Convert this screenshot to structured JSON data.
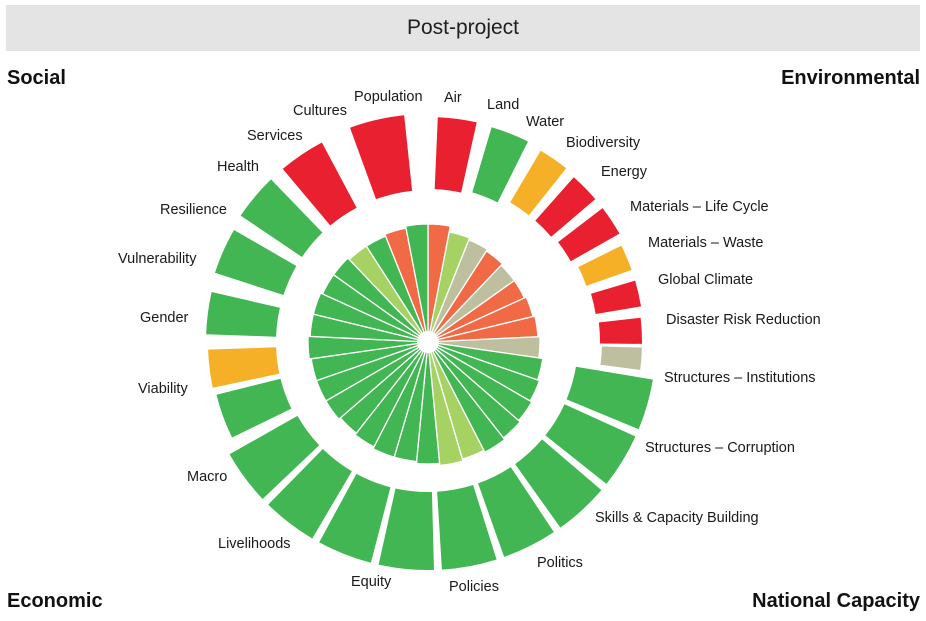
{
  "header": {
    "title": "Post-project"
  },
  "corners": {
    "top_left": "Social",
    "top_right": "Environmental",
    "bottom_left": "Economic",
    "bottom_right": "National Capacity"
  },
  "colors": {
    "green": "#41b653",
    "light_green": "#a6d264",
    "red": "#e8202f",
    "orange": "#f5b027",
    "salmon": "#ef6a45",
    "grey": "#bdbf9f"
  },
  "outer_ring": [
    {
      "label": "Air",
      "status": "red"
    },
    {
      "label": "Land",
      "status": "green"
    },
    {
      "label": "Water",
      "status": "orange"
    },
    {
      "label": "Biodiversity",
      "status": "red"
    },
    {
      "label": "Energy",
      "status": "red"
    },
    {
      "label": "Materials – Life Cycle",
      "status": "orange"
    },
    {
      "label": "Materials – Waste",
      "status": "red"
    },
    {
      "label": "Global Climate",
      "status": "red"
    },
    {
      "label": "Disaster Risk Reduction",
      "status": "grey"
    },
    {
      "label": "Structures – Institutions",
      "status": "green"
    },
    {
      "label": "Structures – Corruption",
      "status": "green"
    },
    {
      "label": "Skills & Capacity Building",
      "status": "green"
    },
    {
      "label": "Politics",
      "status": "green"
    },
    {
      "label": "Policies",
      "status": "green"
    },
    {
      "label": "Equity",
      "status": "green"
    },
    {
      "label": "Livelihoods",
      "status": "green"
    },
    {
      "label": "Macro",
      "status": "green"
    },
    {
      "label": "Viability",
      "status": "green"
    },
    {
      "label": "Gender",
      "status": "green"
    },
    {
      "label": "Vulnerability",
      "status": "orange"
    },
    {
      "label": "Resilience",
      "status": "green"
    },
    {
      "label": "Health",
      "status": "green"
    },
    {
      "label": "Services",
      "status": "green"
    },
    {
      "label": "Cultures",
      "status": "red"
    },
    {
      "label": "Population",
      "status": "red"
    }
  ],
  "inner_ring": [
    "salmon",
    "light_green",
    "grey",
    "salmon",
    "grey",
    "salmon",
    "salmon",
    "salmon",
    "grey",
    "green",
    "green",
    "green",
    "green",
    "green",
    "light_green",
    "light_green",
    "green",
    "green",
    "green",
    "green",
    "green",
    "green",
    "green",
    "green",
    "green",
    "green",
    "green",
    "green",
    "green",
    "light_green",
    "green",
    "salmon",
    "green"
  ]
}
